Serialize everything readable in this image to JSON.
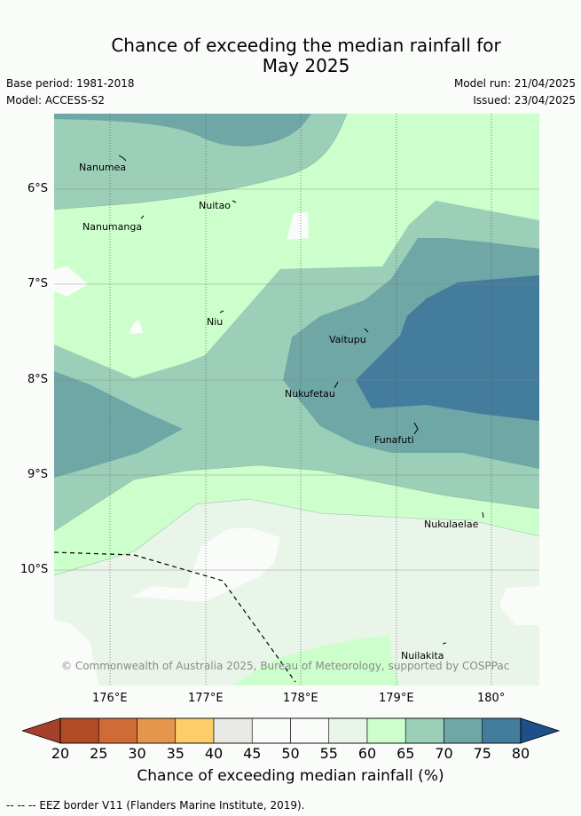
{
  "title_line1": "Chance of exceeding the median rainfall for",
  "title_line2": "May 2025",
  "base_period": "Base period: 1981-2018",
  "model": "Model: ACCESS-S2",
  "model_run": "Model run: 21/04/2025",
  "issued": "Issued: 23/04/2025",
  "copyright": "© Commonwealth of Australia 2025, Bureau of Meteorology, supported by COSPPac",
  "lat_ticks": [
    "6°S",
    "7°S",
    "8°S",
    "9°S",
    "10°S"
  ],
  "lon_ticks": [
    "176°E",
    "177°E",
    "178°E",
    "179°E",
    "180°"
  ],
  "islands": [
    "Nanumea",
    "Nuitao",
    "Nanumanga",
    "Niu",
    "Vaitupu",
    "Nukufetau",
    "Funafuti",
    "Nukulaelae",
    "Nuilakita"
  ],
  "colorbar": {
    "labels": [
      "20",
      "25",
      "30",
      "35",
      "40",
      "45",
      "50",
      "55",
      "60",
      "65",
      "70",
      "75",
      "80"
    ],
    "colors": [
      "#b34a26",
      "#d06a36",
      "#e4964c",
      "#fdcd6a",
      "#e9e9e6",
      "#fafcfa",
      "#fafcfa",
      "#eaf5ea",
      "#ccffcc",
      "#9ccfb7",
      "#6fa6a6",
      "#437c9c"
    ],
    "under_color": "#a5412a",
    "over_color": "#1d5088",
    "title": "Chance of exceeding median rainfall (%)"
  },
  "footer": "-- --  -- EEZ border V11 (Flanders Marine Institute, 2019)."
}
